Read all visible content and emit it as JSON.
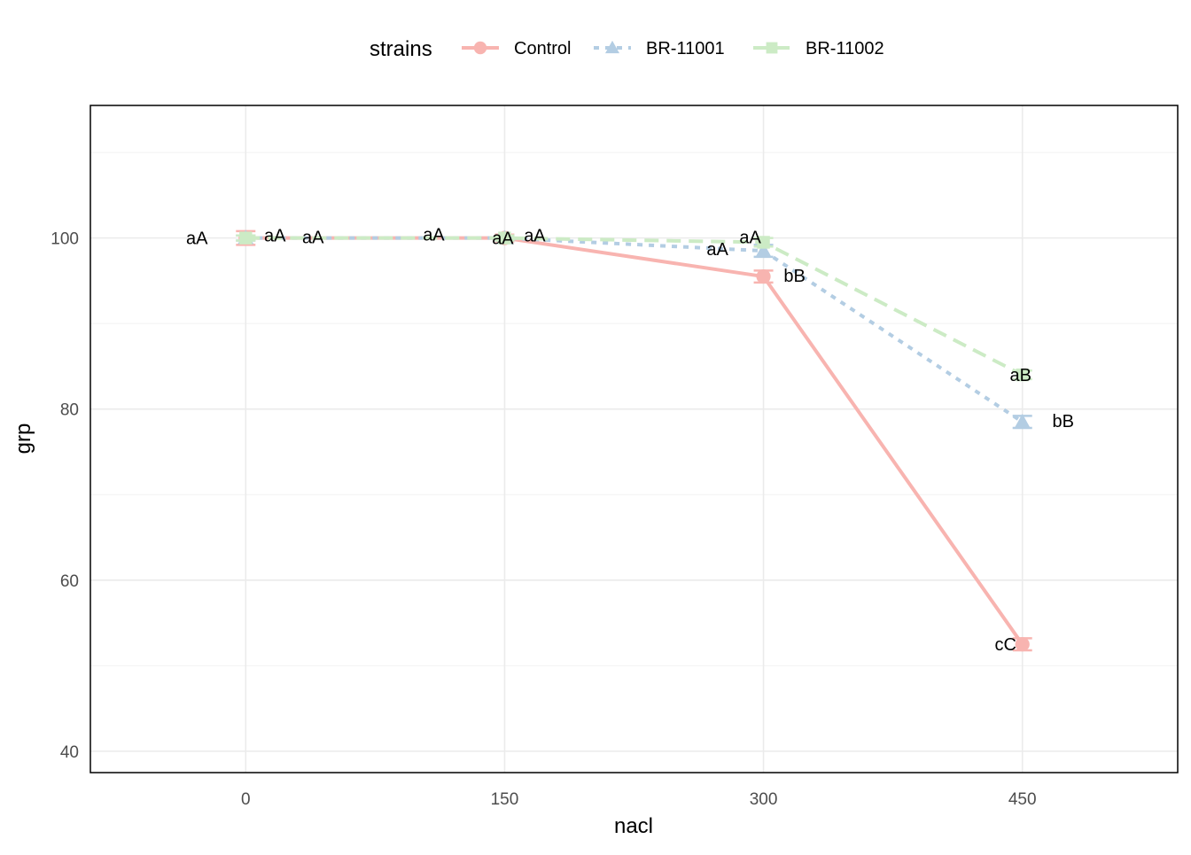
{
  "chart_data": {
    "type": "line",
    "xlabel": "nacl",
    "ylabel": "grp",
    "xlim": [
      -90,
      540
    ],
    "ylim": [
      37.5,
      115.5
    ],
    "x_ticks": [
      0,
      150,
      300,
      450
    ],
    "y_ticks": [
      40,
      60,
      80,
      100
    ],
    "grid": true,
    "legend": {
      "title": "strains",
      "position": "top"
    },
    "series": [
      {
        "name": "Control",
        "color": "#F8B4B0",
        "marker": "circle",
        "dash": "solid",
        "points": [
          {
            "x": 0,
            "y": 100,
            "err": 0.8,
            "label": "aA",
            "label_dx": -55,
            "label_dy": 5
          },
          {
            "x": 150,
            "y": 100,
            "err": 0.4,
            "label": "aA",
            "label_dx": -2,
            "label_dy": 5
          },
          {
            "x": 300,
            "y": 95.5,
            "err": 0.7,
            "label": "bB",
            "label_dx": 35,
            "label_dy": 4
          },
          {
            "x": 450,
            "y": 52.5,
            "err": 0.7,
            "label": "cC",
            "label_dx": -19,
            "label_dy": 5
          }
        ]
      },
      {
        "name": "BR-11001",
        "color": "#B3CDE3",
        "marker": "triangle",
        "dash": "dotted",
        "points": [
          {
            "x": 0,
            "y": 100,
            "err": 0.3,
            "label": "aA",
            "label_dx": 33,
            "label_dy": 2
          },
          {
            "x": 150,
            "y": 100,
            "err": 0.3,
            "label": "aA",
            "label_dx": -80,
            "label_dy": 1
          },
          {
            "x": 300,
            "y": 98.5,
            "err": 0.7,
            "label": "aA",
            "label_dx": -52,
            "label_dy": 3
          },
          {
            "x": 450,
            "y": 78.5,
            "err": 0.7,
            "label": "bB",
            "label_dx": 46,
            "label_dy": 4
          }
        ]
      },
      {
        "name": "BR-11002",
        "color": "#CCEBC5",
        "marker": "square",
        "dash": "dashed",
        "points": [
          {
            "x": 0,
            "y": 100,
            "err": 0.3,
            "label": "aA",
            "label_dx": 76,
            "label_dy": 4
          },
          {
            "x": 150,
            "y": 100,
            "err": 0.3,
            "label": "aA",
            "label_dx": 34,
            "label_dy": 2
          },
          {
            "x": 300,
            "y": 99.5,
            "err": 0.5,
            "label": "aA",
            "label_dx": -15,
            "label_dy": -1
          },
          {
            "x": 450,
            "y": 84,
            "err": 0.5,
            "label": "aB",
            "label_dx": -2,
            "label_dy": 5
          }
        ]
      }
    ]
  }
}
